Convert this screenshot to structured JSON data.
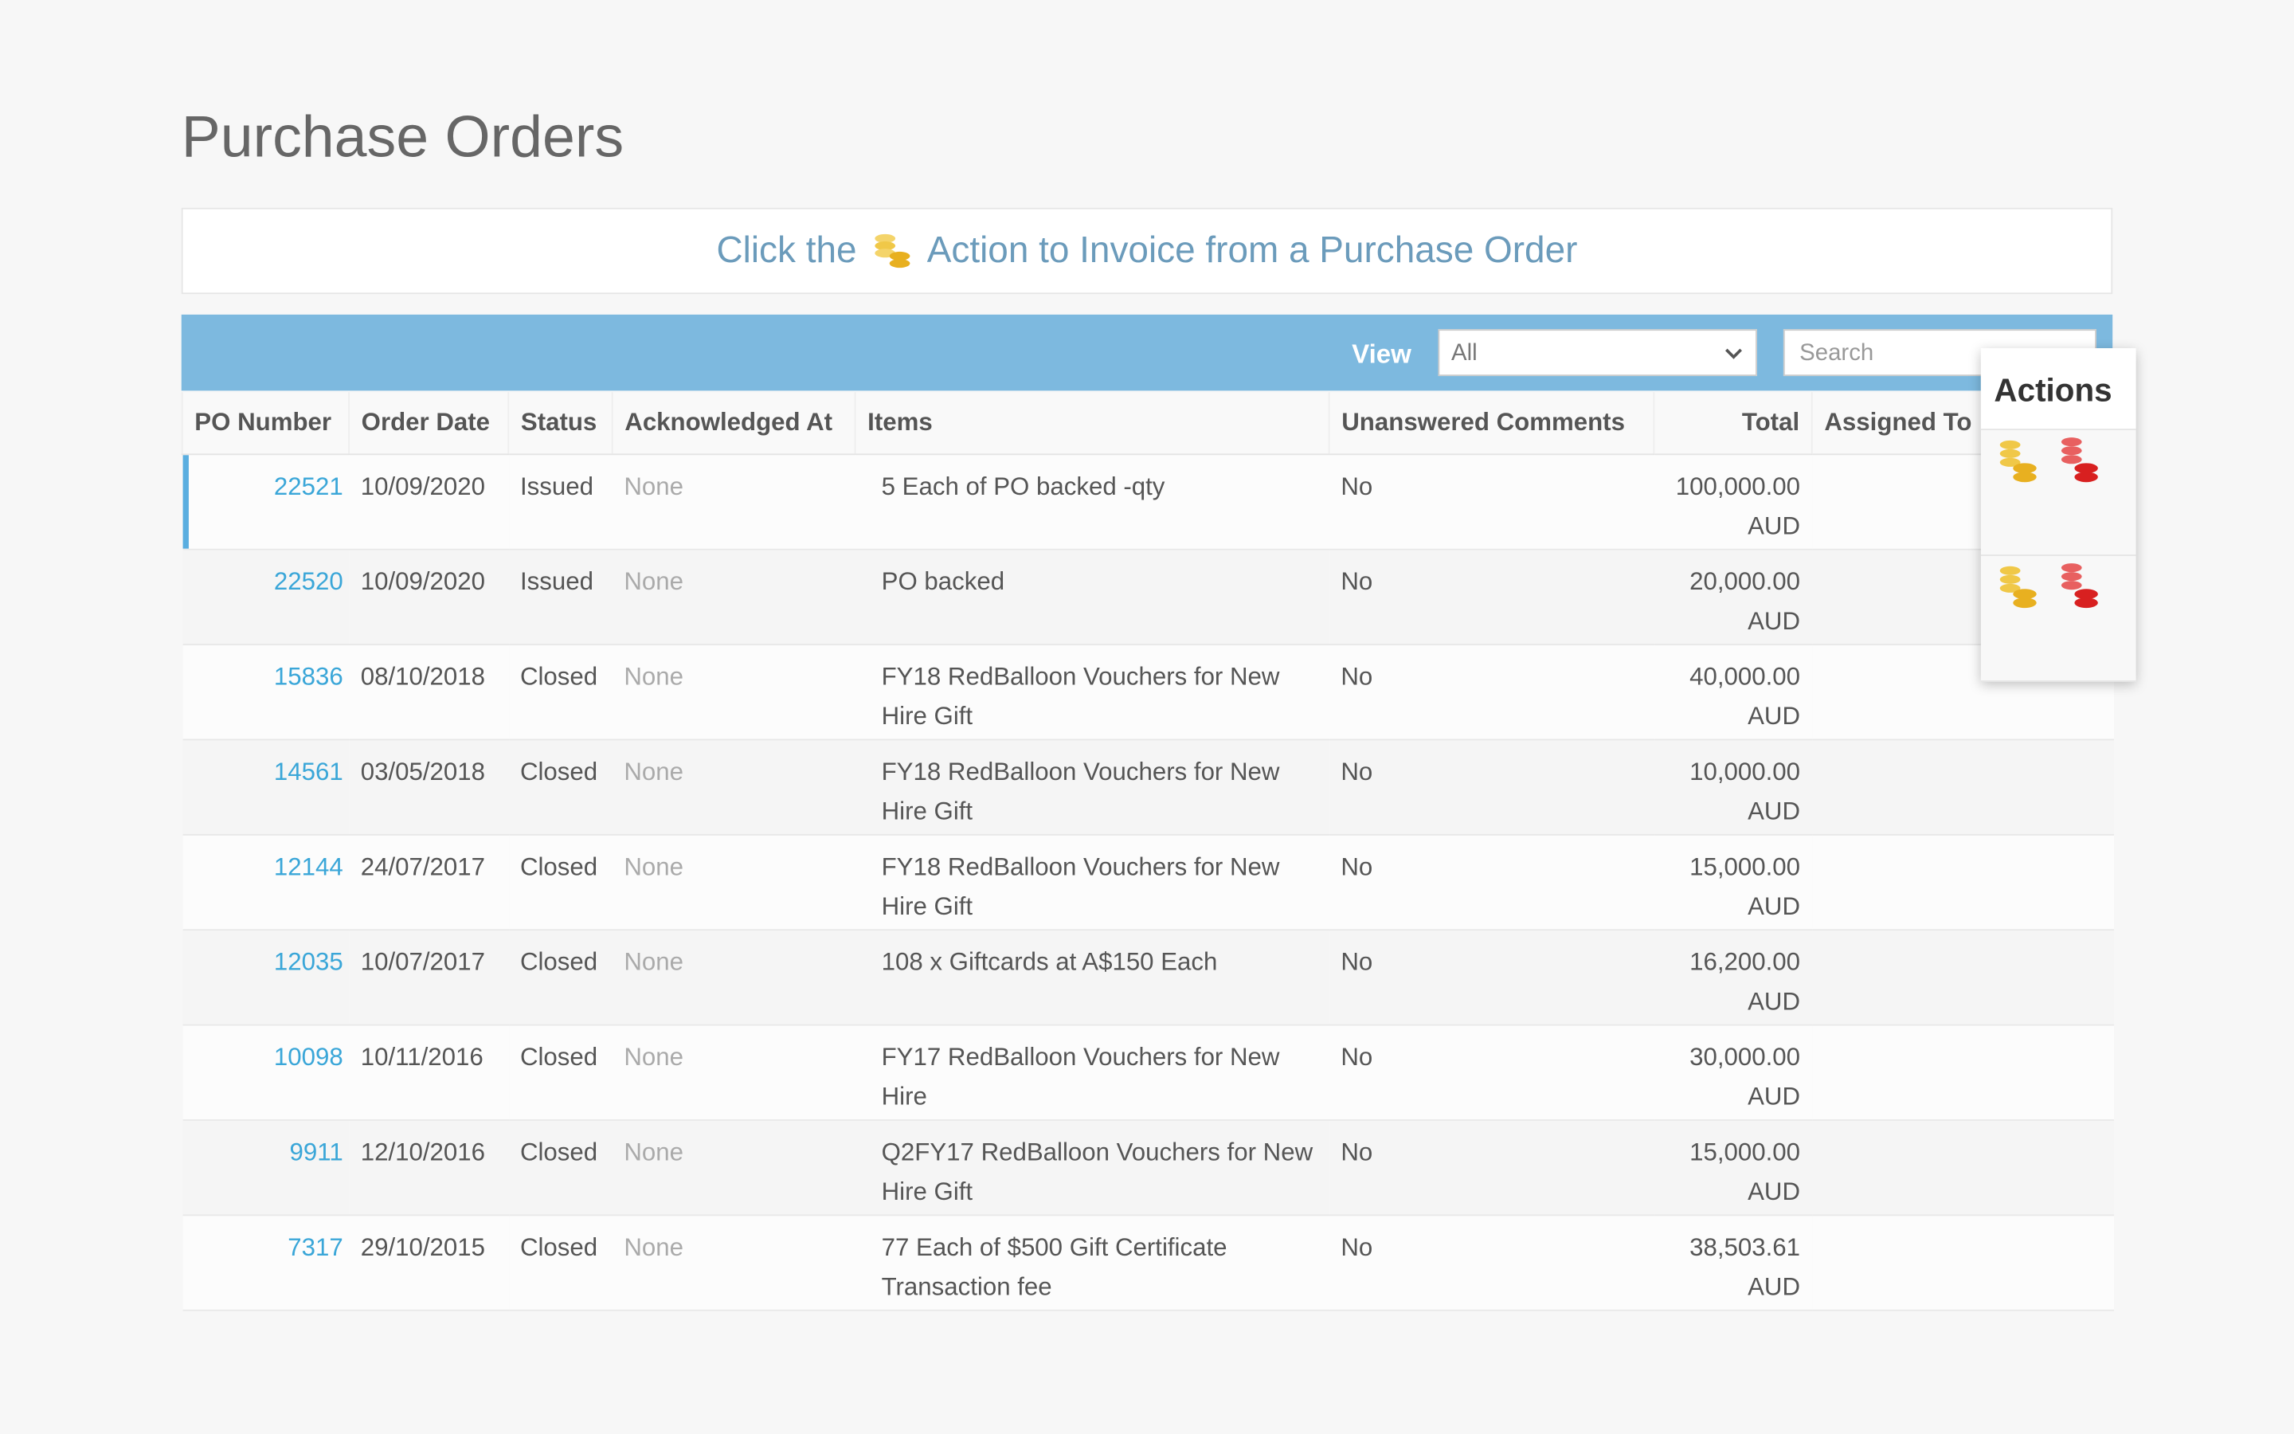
{
  "header": {
    "title": "Purchase Orders"
  },
  "banner": {
    "before": "Click the",
    "after": "Action to Invoice from a Purchase Order"
  },
  "toolbar": {
    "view_label": "View",
    "view_value": "All",
    "search_placeholder": "Search"
  },
  "actions": {
    "title": "Actions"
  },
  "table": {
    "columns": [
      "PO Number",
      "Order Date",
      "Status",
      "Acknowledged At",
      "Items",
      "Unanswered Comments",
      "Total",
      "Assigned To"
    ],
    "rows": [
      [
        "22521",
        "10/09/2020",
        "Issued",
        "None",
        "5 Each of PO backed -qty",
        "No",
        "100,000.00 AUD"
      ],
      [
        "22520",
        "10/09/2020",
        "Issued",
        "None",
        "PO backed",
        "No",
        "20,000.00 AUD"
      ],
      [
        "15836",
        "08/10/2018",
        "Closed",
        "None",
        "FY18 RedBalloon Vouchers for New Hire Gift",
        "No",
        "40,000.00 AUD"
      ],
      [
        "14561",
        "03/05/2018",
        "Closed",
        "None",
        "FY18 RedBalloon Vouchers for New Hire Gift",
        "No",
        "10,000.00 AUD"
      ],
      [
        "12144",
        "24/07/2017",
        "Closed",
        "None",
        "FY18 RedBalloon Vouchers for New Hire Gift",
        "No",
        "15,000.00 AUD"
      ],
      [
        "12035",
        "10/07/2017",
        "Closed",
        "None",
        "108 x Giftcards at A$150 Each",
        "No",
        "16,200.00 AUD"
      ],
      [
        "10098",
        "10/11/2016",
        "Closed",
        "None",
        "FY17 RedBalloon Vouchers for New Hire",
        "No",
        "30,000.00 AUD"
      ],
      [
        "9911",
        "12/10/2016",
        "Closed",
        "None",
        "Q2FY17 RedBalloon Vouchers for New Hire Gift",
        "No",
        "15,000.00 AUD"
      ],
      [
        "7317",
        "29/10/2015",
        "Closed",
        "None",
        "77 Each of $500 Gift Certificate Transaction fee",
        "No",
        "38,503.61 AUD"
      ]
    ]
  }
}
